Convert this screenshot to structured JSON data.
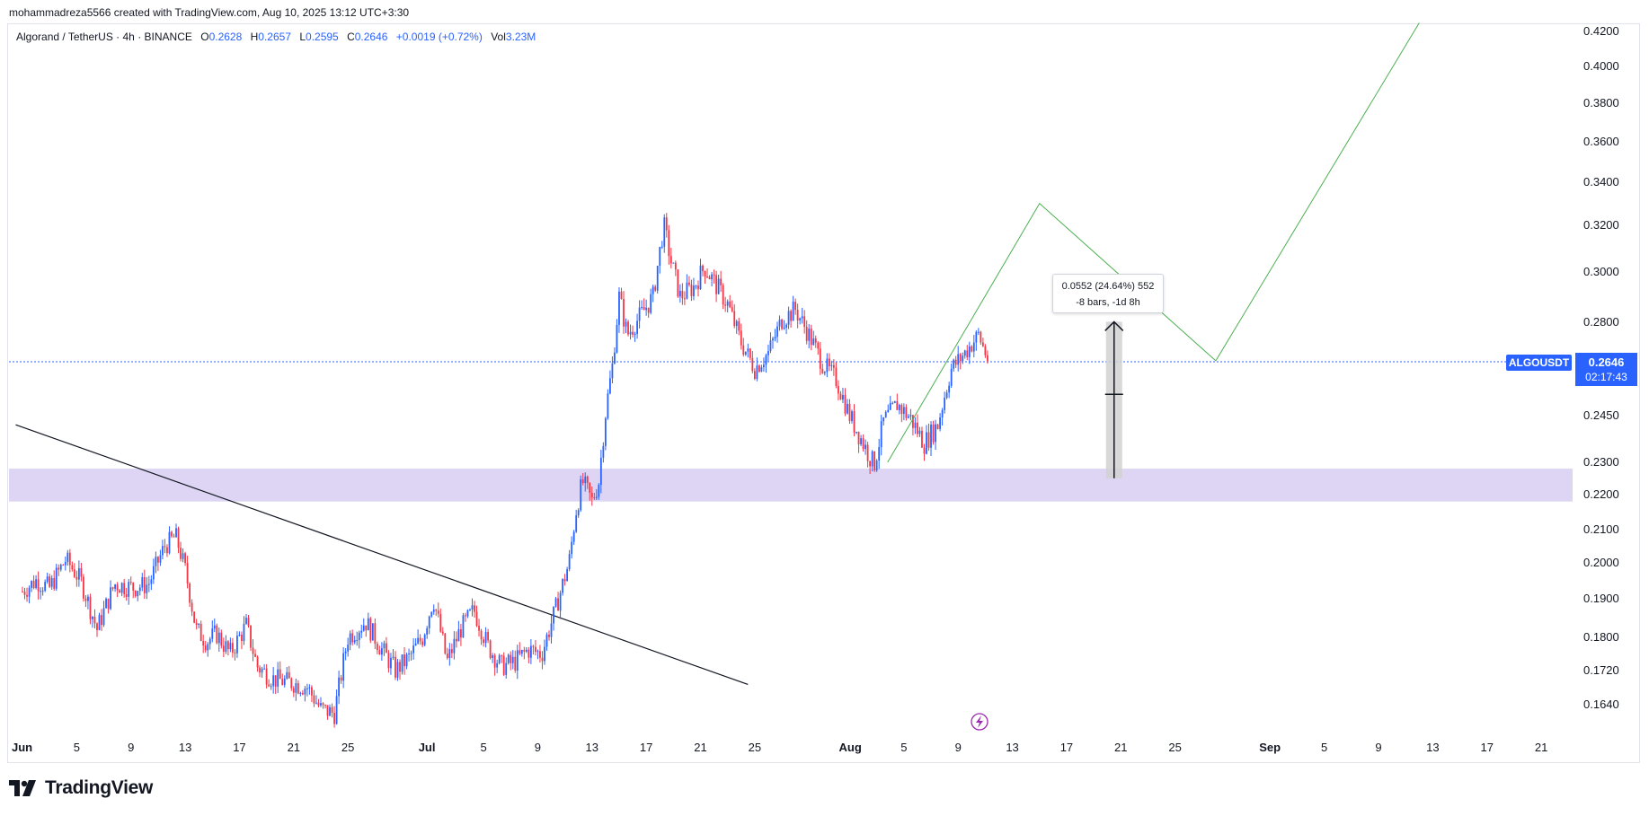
{
  "header": {
    "credit": "mohammadreza5566 created with TradingView.com, Aug 10, 2025 13:12 UTC+3:30"
  },
  "legend": {
    "symbol": "Algorand / TetherUS · 4h · BINANCE",
    "open_label": "O",
    "open": "0.2628",
    "high_label": "H",
    "high": "0.2657",
    "low_label": "L",
    "low": "0.2595",
    "close_label": "C",
    "close": "0.2646",
    "change": "+0.0019 (+0.72%)",
    "vol_label": "Vol",
    "vol": "3.23M"
  },
  "measure": {
    "line1": "0.0552 (24.64%) 552",
    "line2": "-8 bars, -1d 8h"
  },
  "price_badge": {
    "symbol": "ALGOUSDT",
    "price": "0.2646",
    "countdown": "02:17:43"
  },
  "footer": {
    "brand": "TradingView"
  },
  "colors": {
    "up": "#2962ff",
    "down": "#f23645",
    "zone": "#ddd5f3",
    "projection": "#4caf50",
    "trendline": "#131722",
    "measure_fill": "#d1d1d1",
    "current_line": "#2962ff"
  },
  "chart_data": {
    "type": "candlestick",
    "title": "Algorand / TetherUS · 4h · BINANCE",
    "y_axis": {
      "ticks": [
        "0.1640",
        "0.1720",
        "0.1800",
        "0.1900",
        "0.2000",
        "0.2100",
        "0.2200",
        "0.2300",
        "0.2450",
        "0.2800",
        "0.3000",
        "0.3200",
        "0.3400",
        "0.3600",
        "0.3800",
        "0.4000",
        "0.4200"
      ],
      "ylim": [
        0.16,
        0.425
      ]
    },
    "x_axis": {
      "start": "Jun 1",
      "end": "Sep 24",
      "ticks": [
        {
          "label": "Jun",
          "day": 0
        },
        {
          "label": "5",
          "day": 4
        },
        {
          "label": "9",
          "day": 8
        },
        {
          "label": "13",
          "day": 12
        },
        {
          "label": "17",
          "day": 16
        },
        {
          "label": "21",
          "day": 20
        },
        {
          "label": "25",
          "day": 24
        },
        {
          "label": "Jul",
          "day": 30
        },
        {
          "label": "5",
          "day": 34
        },
        {
          "label": "9",
          "day": 38
        },
        {
          "label": "13",
          "day": 42
        },
        {
          "label": "17",
          "day": 46
        },
        {
          "label": "21",
          "day": 50
        },
        {
          "label": "25",
          "day": 54
        },
        {
          "label": "Aug",
          "day": 61
        },
        {
          "label": "5",
          "day": 65
        },
        {
          "label": "9",
          "day": 69
        },
        {
          "label": "13",
          "day": 73
        },
        {
          "label": "17",
          "day": 77
        },
        {
          "label": "21",
          "day": 81
        },
        {
          "label": "25",
          "day": 85
        },
        {
          "label": "Sep",
          "day": 92
        },
        {
          "label": "5",
          "day": 96
        },
        {
          "label": "9",
          "day": 100
        },
        {
          "label": "13",
          "day": 104
        },
        {
          "label": "17",
          "day": 108
        },
        {
          "label": "21",
          "day": 112
        }
      ]
    },
    "price_path": [
      {
        "day": 0,
        "price": 0.192
      },
      {
        "day": 1,
        "price": 0.195
      },
      {
        "day": 2,
        "price": 0.193
      },
      {
        "day": 3.2,
        "price": 0.201
      },
      {
        "day": 4.3,
        "price": 0.195
      },
      {
        "day": 5.5,
        "price": 0.182
      },
      {
        "day": 6.8,
        "price": 0.194
      },
      {
        "day": 8.2,
        "price": 0.193
      },
      {
        "day": 9.3,
        "price": 0.194
      },
      {
        "day": 10.5,
        "price": 0.205
      },
      {
        "day": 11.3,
        "price": 0.208
      },
      {
        "day": 12,
        "price": 0.198
      },
      {
        "day": 12.8,
        "price": 0.182
      },
      {
        "day": 13.6,
        "price": 0.179
      },
      {
        "day": 14.3,
        "price": 0.181
      },
      {
        "day": 15.3,
        "price": 0.176
      },
      {
        "day": 16.5,
        "price": 0.183
      },
      {
        "day": 17.3,
        "price": 0.173
      },
      {
        "day": 18.5,
        "price": 0.17
      },
      {
        "day": 20,
        "price": 0.169
      },
      {
        "day": 21,
        "price": 0.168
      },
      {
        "day": 22,
        "price": 0.163
      },
      {
        "day": 23,
        "price": 0.162
      },
      {
        "day": 24,
        "price": 0.18
      },
      {
        "day": 25.3,
        "price": 0.184
      },
      {
        "day": 26.5,
        "price": 0.177
      },
      {
        "day": 27.5,
        "price": 0.172
      },
      {
        "day": 28.5,
        "price": 0.175
      },
      {
        "day": 29.5,
        "price": 0.18
      },
      {
        "day": 30.3,
        "price": 0.19
      },
      {
        "day": 31.3,
        "price": 0.174
      },
      {
        "day": 32.3,
        "price": 0.182
      },
      {
        "day": 33.3,
        "price": 0.187
      },
      {
        "day": 34.3,
        "price": 0.178
      },
      {
        "day": 35.3,
        "price": 0.173
      },
      {
        "day": 36.3,
        "price": 0.174
      },
      {
        "day": 37.3,
        "price": 0.177
      },
      {
        "day": 38.3,
        "price": 0.176
      },
      {
        "day": 39.3,
        "price": 0.187
      },
      {
        "day": 40.3,
        "price": 0.2
      },
      {
        "day": 40.8,
        "price": 0.215
      },
      {
        "day": 41.3,
        "price": 0.224
      },
      {
        "day": 42,
        "price": 0.218
      },
      {
        "day": 42.5,
        "price": 0.224
      },
      {
        "day": 43,
        "price": 0.246
      },
      {
        "day": 43.5,
        "price": 0.263
      },
      {
        "day": 44,
        "price": 0.29
      },
      {
        "day": 44.6,
        "price": 0.275
      },
      {
        "day": 45.5,
        "price": 0.282
      },
      {
        "day": 46.5,
        "price": 0.29
      },
      {
        "day": 47.3,
        "price": 0.32
      },
      {
        "day": 47.8,
        "price": 0.305
      },
      {
        "day": 48.5,
        "price": 0.29
      },
      {
        "day": 49.5,
        "price": 0.294
      },
      {
        "day": 50.3,
        "price": 0.302
      },
      {
        "day": 51,
        "price": 0.296
      },
      {
        "day": 52,
        "price": 0.287
      },
      {
        "day": 53,
        "price": 0.272
      },
      {
        "day": 54,
        "price": 0.262
      },
      {
        "day": 55,
        "price": 0.268
      },
      {
        "day": 56,
        "price": 0.281
      },
      {
        "day": 57,
        "price": 0.285
      },
      {
        "day": 58,
        "price": 0.275
      },
      {
        "day": 59,
        "price": 0.264
      },
      {
        "day": 60,
        "price": 0.258
      },
      {
        "day": 61,
        "price": 0.245
      },
      {
        "day": 62,
        "price": 0.236
      },
      {
        "day": 62.8,
        "price": 0.229
      },
      {
        "day": 63.5,
        "price": 0.243
      },
      {
        "day": 64.5,
        "price": 0.249
      },
      {
        "day": 65.5,
        "price": 0.244
      },
      {
        "day": 66.5,
        "price": 0.236
      },
      {
        "day": 67.5,
        "price": 0.242
      },
      {
        "day": 68.5,
        "price": 0.262
      },
      {
        "day": 69.5,
        "price": 0.268
      },
      {
        "day": 70.5,
        "price": 0.275
      },
      {
        "day": 71.3,
        "price": 0.264
      }
    ],
    "annotations": {
      "zone": {
        "low": 0.218,
        "high": 0.228
      },
      "current_price": 0.2646,
      "trendline": [
        {
          "day": -0.5,
          "price": 0.242
        },
        {
          "day": 53.5,
          "price": 0.1687
        }
      ],
      "projection": [
        {
          "day": 63.8,
          "price": 0.23
        },
        {
          "day": 75,
          "price": 0.33
        },
        {
          "day": 88,
          "price": 0.265
        },
        {
          "day": 103,
          "price": 0.425
        }
      ],
      "measure": {
        "day": 80.5,
        "from": 0.225,
        "to": 0.2802,
        "mid": 0.2526
      }
    }
  }
}
